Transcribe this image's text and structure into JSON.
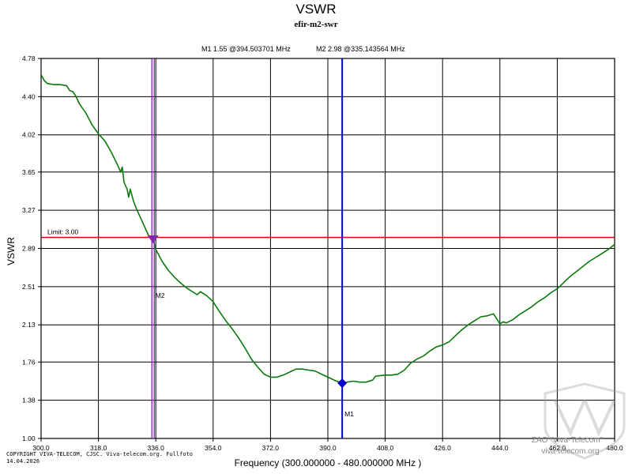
{
  "chart_data": {
    "type": "line",
    "title": "VSWR",
    "subtitle": "efir-m2-swr",
    "xlabel": "Frequency (300.000000 - 480.000000 MHz )",
    "ylabel": "VSWR",
    "xlim": [
      300,
      480
    ],
    "ylim": [
      1.0,
      4.78
    ],
    "x_ticks": [
      300.0,
      318.0,
      336.0,
      354.0,
      372.0,
      390.0,
      408.0,
      426.0,
      444.0,
      462.0,
      480.0
    ],
    "x_tick_labels": [
      "300.0",
      "318.0",
      "336.0",
      "354.0",
      "372.0",
      "390.0",
      "408.0",
      "426.0",
      "444.0",
      "462.0",
      "480.0"
    ],
    "y_ticks": [
      1.0,
      1.38,
      1.76,
      2.13,
      2.51,
      2.89,
      3.27,
      3.65,
      4.02,
      4.4,
      4.78
    ],
    "y_tick_labels": [
      "1.00",
      "1.38",
      "1.76",
      "2.13",
      "2.51",
      "2.89",
      "3.27",
      "3.65",
      "4.02",
      "4.40",
      "4.78"
    ],
    "grid": true,
    "limit": {
      "value": 3.0,
      "label": "Limit: 3.00",
      "color": "#dd0000"
    },
    "series": [
      {
        "name": "VSWR",
        "color": "#0a7a0a",
        "points": [
          [
            300,
            4.62
          ],
          [
            301,
            4.56
          ],
          [
            302,
            4.53
          ],
          [
            304,
            4.52
          ],
          [
            306,
            4.52
          ],
          [
            308,
            4.51
          ],
          [
            309,
            4.46
          ],
          [
            310,
            4.45
          ],
          [
            311,
            4.4
          ],
          [
            312,
            4.33
          ],
          [
            314,
            4.24
          ],
          [
            316,
            4.12
          ],
          [
            318,
            4.03
          ],
          [
            320,
            3.96
          ],
          [
            322,
            3.85
          ],
          [
            324,
            3.72
          ],
          [
            325,
            3.65
          ],
          [
            325.5,
            3.7
          ],
          [
            326,
            3.55
          ],
          [
            327,
            3.48
          ],
          [
            327.5,
            3.4
          ],
          [
            328,
            3.48
          ],
          [
            329,
            3.36
          ],
          [
            330,
            3.28
          ],
          [
            332,
            3.14
          ],
          [
            334,
            3.0
          ],
          [
            335.14,
            2.98
          ],
          [
            336,
            2.88
          ],
          [
            338,
            2.76
          ],
          [
            340,
            2.67
          ],
          [
            342,
            2.6
          ],
          [
            344,
            2.54
          ],
          [
            346,
            2.49
          ],
          [
            348,
            2.45
          ],
          [
            349,
            2.43
          ],
          [
            350,
            2.46
          ],
          [
            352,
            2.42
          ],
          [
            354,
            2.36
          ],
          [
            356,
            2.26
          ],
          [
            358,
            2.17
          ],
          [
            360,
            2.09
          ],
          [
            362,
            2.0
          ],
          [
            364,
            1.9
          ],
          [
            366,
            1.79
          ],
          [
            368,
            1.71
          ],
          [
            370,
            1.64
          ],
          [
            372,
            1.61
          ],
          [
            374,
            1.61
          ],
          [
            376,
            1.63
          ],
          [
            378,
            1.66
          ],
          [
            380,
            1.69
          ],
          [
            382,
            1.69
          ],
          [
            384,
            1.68
          ],
          [
            386,
            1.67
          ],
          [
            388,
            1.64
          ],
          [
            390,
            1.61
          ],
          [
            392,
            1.58
          ],
          [
            394.5,
            1.55
          ],
          [
            396,
            1.56
          ],
          [
            398,
            1.57
          ],
          [
            400,
            1.56
          ],
          [
            402,
            1.56
          ],
          [
            404,
            1.58
          ],
          [
            405,
            1.62
          ],
          [
            408,
            1.63
          ],
          [
            410,
            1.63
          ],
          [
            412,
            1.64
          ],
          [
            414,
            1.68
          ],
          [
            416,
            1.75
          ],
          [
            418,
            1.79
          ],
          [
            420,
            1.82
          ],
          [
            422,
            1.87
          ],
          [
            424,
            1.91
          ],
          [
            426,
            1.93
          ],
          [
            428,
            1.96
          ],
          [
            430,
            2.02
          ],
          [
            432,
            2.08
          ],
          [
            434,
            2.13
          ],
          [
            436,
            2.17
          ],
          [
            438,
            2.21
          ],
          [
            440,
            2.22
          ],
          [
            442,
            2.24
          ],
          [
            444,
            2.14
          ],
          [
            445,
            2.16
          ],
          [
            446,
            2.15
          ],
          [
            448,
            2.18
          ],
          [
            450,
            2.23
          ],
          [
            452,
            2.27
          ],
          [
            454,
            2.31
          ],
          [
            456,
            2.36
          ],
          [
            458,
            2.4
          ],
          [
            460,
            2.45
          ],
          [
            462,
            2.49
          ],
          [
            464,
            2.55
          ],
          [
            466,
            2.61
          ],
          [
            468,
            2.66
          ],
          [
            470,
            2.71
          ],
          [
            472,
            2.76
          ],
          [
            474,
            2.8
          ],
          [
            476,
            2.84
          ],
          [
            478,
            2.88
          ],
          [
            480,
            2.93
          ]
        ]
      }
    ],
    "markers": [
      {
        "id": "M1",
        "name": "M1",
        "freq": 394.503701,
        "value": 1.55,
        "color": "#0000cc",
        "shape": "diamond",
        "readout": "M1  1.55 @394.503701 MHz"
      },
      {
        "id": "M2",
        "name": "M2",
        "freq": 335.143564,
        "value": 2.98,
        "color": "#7a2aa8",
        "shape": "triangle-down",
        "readout": "M2  2.98 @335.143564 MHz"
      }
    ],
    "annotations": {
      "copyright_line1": "COPYRIGHT VIVA-TELECOM, CJSC. Viva-telecom.org. Fullfoto",
      "copyright_line2": "14.04.2026",
      "watermark_line1": "ZAO \"Viva-Telecom\"",
      "watermark_line2": "viva-telecom.org"
    }
  },
  "colors": {
    "grid": "#000000",
    "curve": "#0a7a0a",
    "limit": "#dd0000",
    "m1": "#0000cc",
    "m2": "#7a2aa8",
    "readout_m1": "#1a1a8a",
    "readout_m2": "#7a2aa8"
  }
}
